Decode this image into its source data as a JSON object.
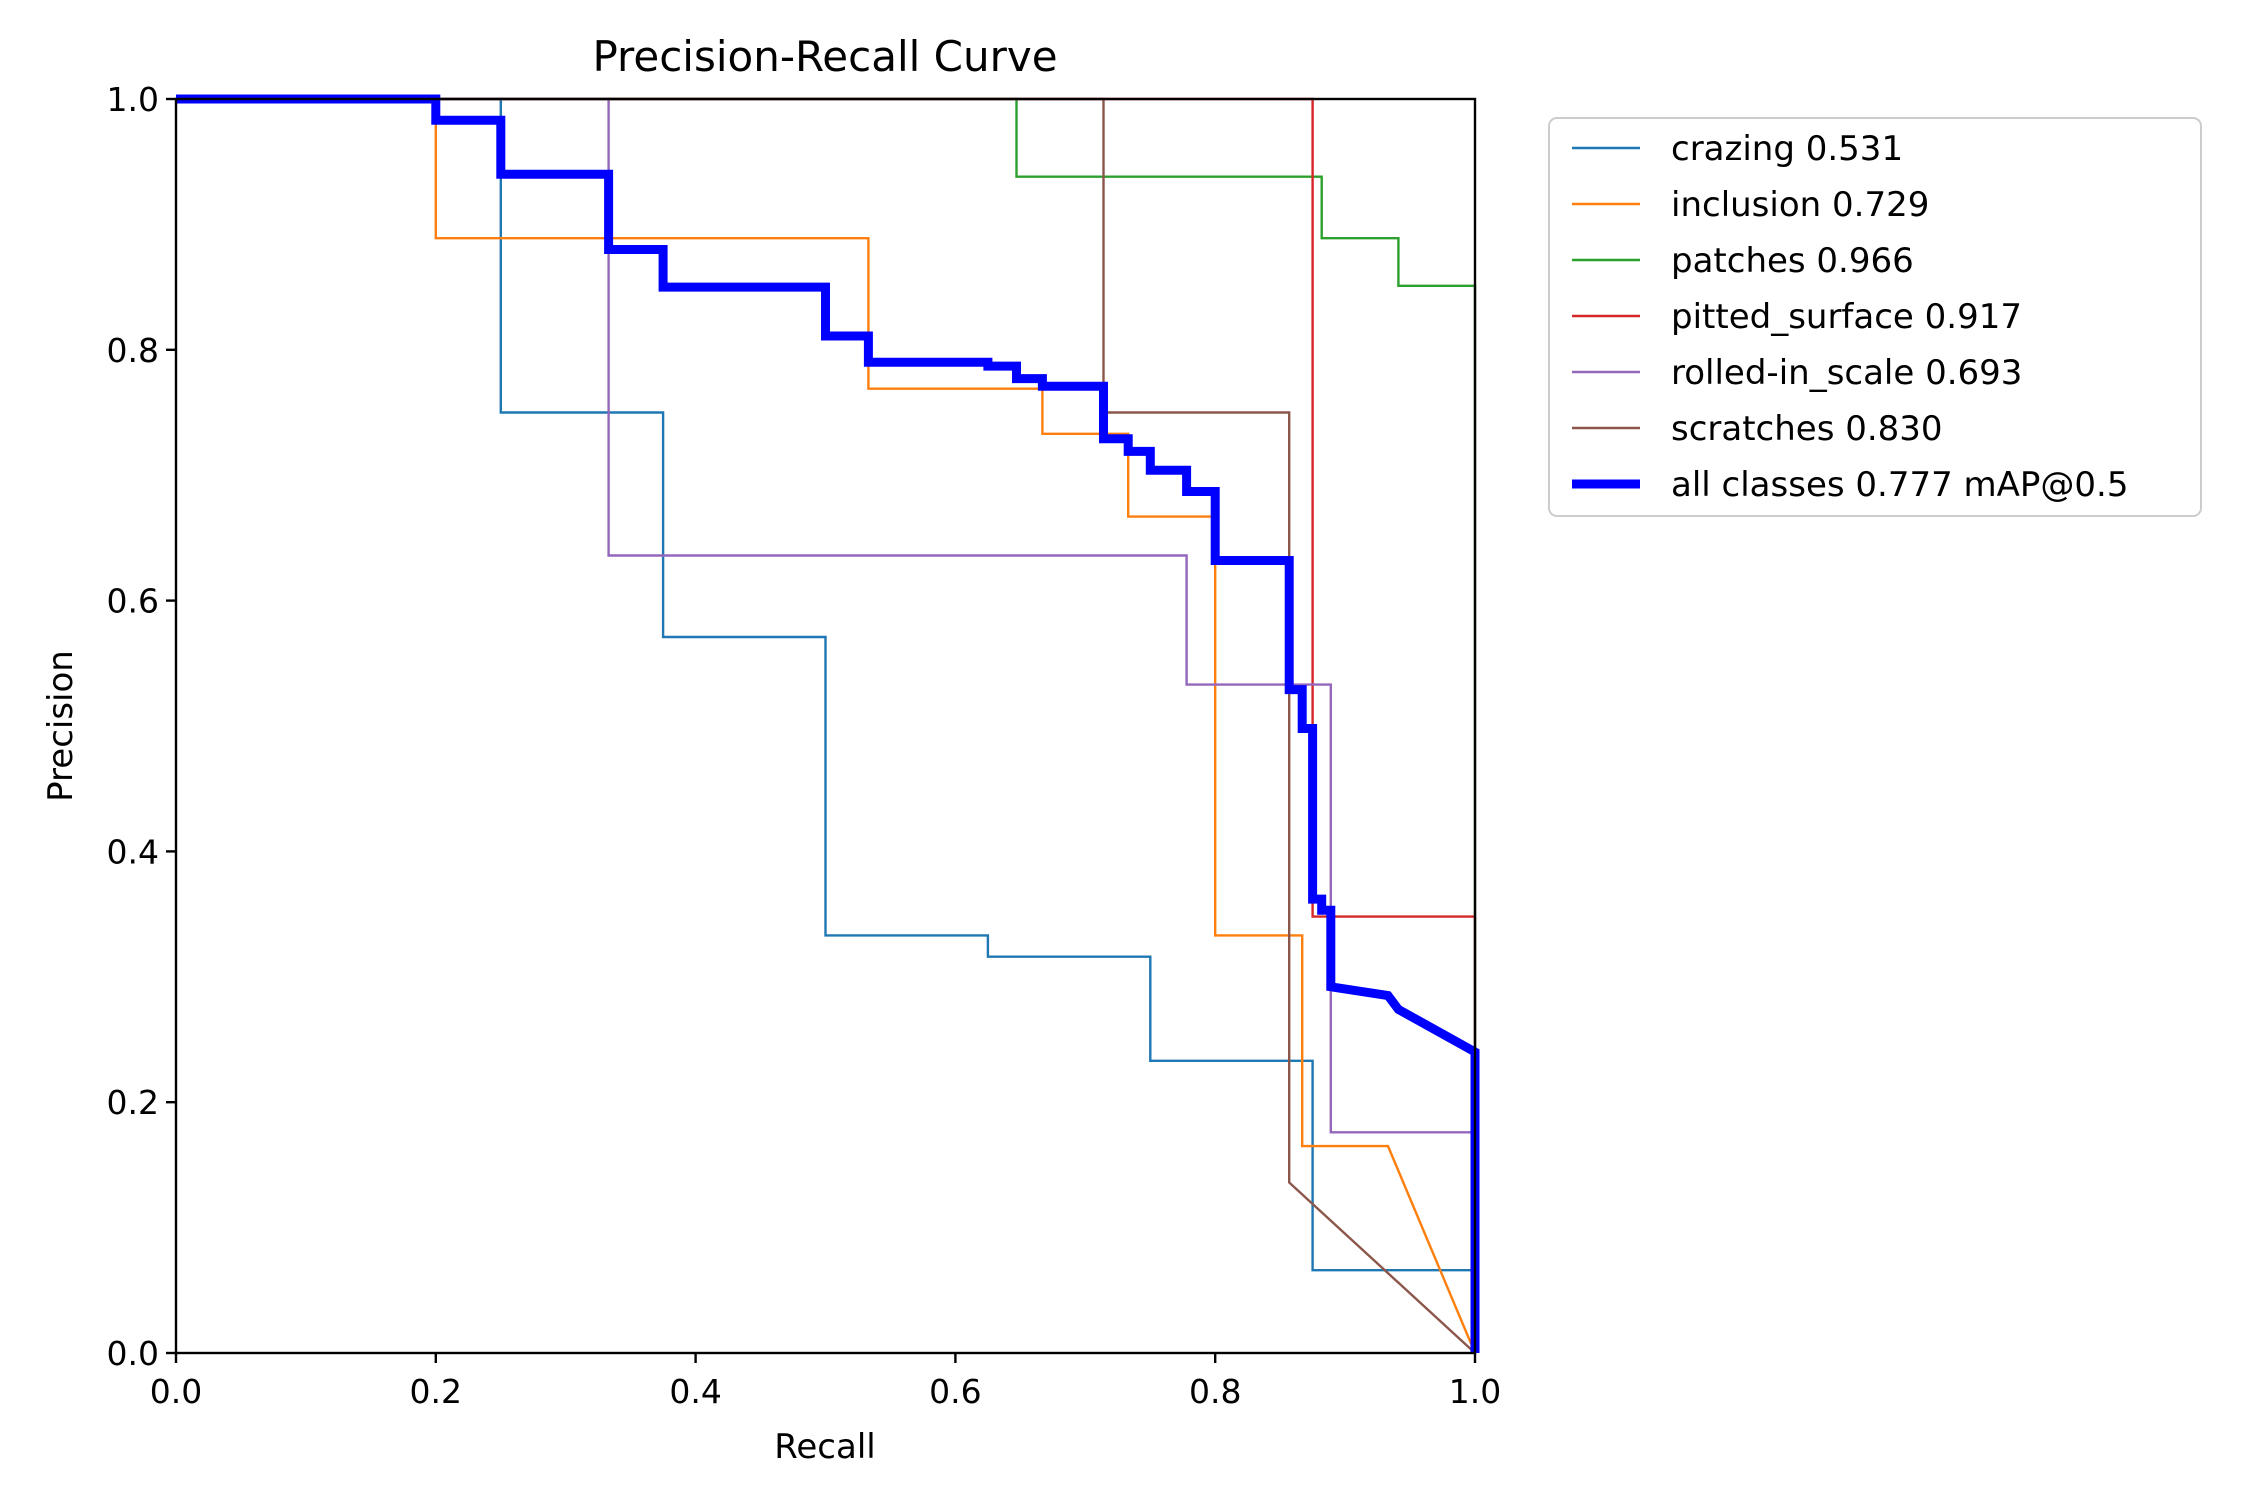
{
  "chart_data": {
    "type": "line",
    "title": "Precision-Recall Curve",
    "xlabel": "Recall",
    "ylabel": "Precision",
    "xlim": [
      0,
      1
    ],
    "ylim": [
      0,
      1
    ],
    "xticks": [
      "0.0",
      "0.2",
      "0.4",
      "0.6",
      "0.8",
      "1.0"
    ],
    "yticks": [
      "0.0",
      "0.2",
      "0.4",
      "0.6",
      "0.8",
      "1.0"
    ],
    "legend_position": "outside-top-right",
    "series": [
      {
        "name": "crazing",
        "label": "crazing 0.531",
        "color": "#1f77b4",
        "points": [
          [
            0,
            1
          ],
          [
            0.25,
            1
          ],
          [
            0.25,
            0.75
          ],
          [
            0.375,
            0.75
          ],
          [
            0.375,
            0.571
          ],
          [
            0.5,
            0.571
          ],
          [
            0.5,
            0.333
          ],
          [
            0.625,
            0.333
          ],
          [
            0.625,
            0.316
          ],
          [
            0.75,
            0.316
          ],
          [
            0.75,
            0.233
          ],
          [
            0.875,
            0.233
          ],
          [
            0.875,
            0.066
          ],
          [
            1.0,
            0.066
          ],
          [
            1.0,
            0
          ]
        ]
      },
      {
        "name": "inclusion",
        "label": "inclusion 0.729",
        "color": "#ff7f0e",
        "points": [
          [
            0,
            1
          ],
          [
            0.2,
            1
          ],
          [
            0.2,
            0.889
          ],
          [
            0.533,
            0.889
          ],
          [
            0.533,
            0.769
          ],
          [
            0.667,
            0.769
          ],
          [
            0.667,
            0.733
          ],
          [
            0.733,
            0.733
          ],
          [
            0.733,
            0.667
          ],
          [
            0.8,
            0.667
          ],
          [
            0.8,
            0.333
          ],
          [
            0.867,
            0.333
          ],
          [
            0.867,
            0.165
          ],
          [
            0.933,
            0.165
          ],
          [
            1.0,
            0
          ]
        ]
      },
      {
        "name": "patches",
        "label": "patches 0.966",
        "color": "#2ca02c",
        "points": [
          [
            0,
            1
          ],
          [
            0.647,
            1
          ],
          [
            0.647,
            0.938
          ],
          [
            0.882,
            0.938
          ],
          [
            0.882,
            0.889
          ],
          [
            0.941,
            0.889
          ],
          [
            0.941,
            0.851
          ],
          [
            1.0,
            0.851
          ],
          [
            1.0,
            0
          ]
        ]
      },
      {
        "name": "pitted_surface",
        "label": "pitted_surface 0.917",
        "color": "#d62728",
        "points": [
          [
            0,
            1
          ],
          [
            0.875,
            1
          ],
          [
            0.875,
            0.348
          ],
          [
            1.0,
            0.348
          ],
          [
            1.0,
            0
          ]
        ]
      },
      {
        "name": "rolled-in_scale",
        "label": "rolled-in_scale 0.693",
        "color": "#9467bd",
        "points": [
          [
            0,
            1
          ],
          [
            0.333,
            1
          ],
          [
            0.333,
            0.636
          ],
          [
            0.778,
            0.636
          ],
          [
            0.778,
            0.533
          ],
          [
            0.889,
            0.533
          ],
          [
            0.889,
            0.176
          ],
          [
            1.0,
            0.176
          ],
          [
            1.0,
            0
          ]
        ]
      },
      {
        "name": "scratches",
        "label": "scratches 0.830",
        "color": "#8c564b",
        "points": [
          [
            0,
            1
          ],
          [
            0.714,
            1
          ],
          [
            0.714,
            0.75
          ],
          [
            0.857,
            0.75
          ],
          [
            0.857,
            0.136
          ],
          [
            1.0,
            0
          ]
        ]
      },
      {
        "name": "all classes",
        "label": "all classes 0.777 mAP@0.5",
        "color": "#0000ff",
        "thick": true,
        "points": [
          [
            0,
            1
          ],
          [
            0.2,
            1
          ],
          [
            0.2,
            0.983
          ],
          [
            0.25,
            0.983
          ],
          [
            0.25,
            0.94
          ],
          [
            0.333,
            0.94
          ],
          [
            0.333,
            0.88
          ],
          [
            0.375,
            0.88
          ],
          [
            0.375,
            0.85
          ],
          [
            0.5,
            0.85
          ],
          [
            0.5,
            0.811
          ],
          [
            0.533,
            0.811
          ],
          [
            0.533,
            0.79
          ],
          [
            0.625,
            0.79
          ],
          [
            0.625,
            0.787
          ],
          [
            0.647,
            0.787
          ],
          [
            0.647,
            0.777
          ],
          [
            0.667,
            0.777
          ],
          [
            0.667,
            0.771
          ],
          [
            0.714,
            0.771
          ],
          [
            0.714,
            0.729
          ],
          [
            0.733,
            0.729
          ],
          [
            0.733,
            0.719
          ],
          [
            0.75,
            0.719
          ],
          [
            0.75,
            0.704
          ],
          [
            0.778,
            0.704
          ],
          [
            0.778,
            0.687
          ],
          [
            0.8,
            0.687
          ],
          [
            0.8,
            0.632
          ],
          [
            0.857,
            0.632
          ],
          [
            0.857,
            0.529
          ],
          [
            0.867,
            0.529
          ],
          [
            0.867,
            0.498
          ],
          [
            0.875,
            0.498
          ],
          [
            0.875,
            0.362
          ],
          [
            0.882,
            0.362
          ],
          [
            0.882,
            0.353
          ],
          [
            0.889,
            0.353
          ],
          [
            0.889,
            0.292
          ],
          [
            0.933,
            0.285
          ],
          [
            0.941,
            0.274
          ],
          [
            1.0,
            0.24
          ],
          [
            1.0,
            0
          ]
        ]
      }
    ]
  }
}
